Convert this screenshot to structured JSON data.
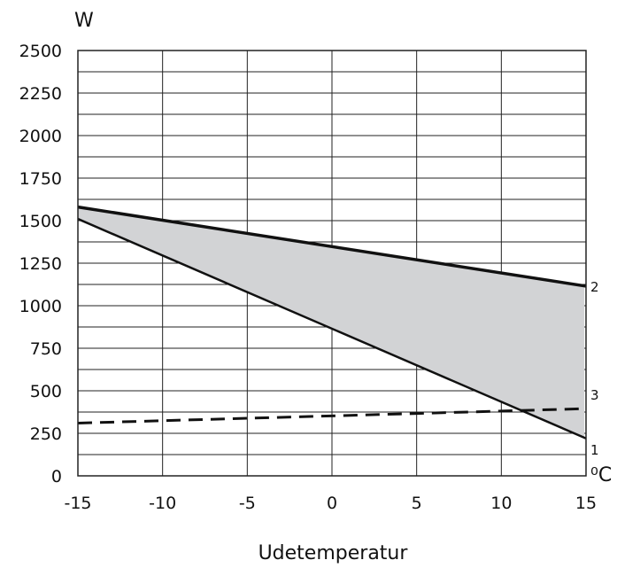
{
  "chart_data": {
    "type": "line",
    "title": "",
    "xlabel": "Udetemperatur",
    "ylabel": "W",
    "x_unit": "⁰C",
    "xlim": [
      -15,
      15
    ],
    "ylim": [
      0,
      2500
    ],
    "xticks": [
      "-15",
      "-10",
      "-5",
      "0",
      "5",
      "10",
      "15"
    ],
    "yticks": [
      "0",
      "250",
      "500",
      "750",
      "1000",
      "1250",
      "1500",
      "1750",
      "2000",
      "2250",
      "2500"
    ],
    "grid": true,
    "series": [
      {
        "name": "1",
        "style": "solid",
        "color": "#111111",
        "x": [
          -15,
          15
        ],
        "y": [
          1510,
          220
        ]
      },
      {
        "name": "2",
        "style": "solid-bold",
        "color": "#111111",
        "x": [
          -15,
          15
        ],
        "y": [
          1580,
          1115
        ]
      },
      {
        "name": "3",
        "style": "dashed",
        "color": "#111111",
        "x": [
          -15,
          15
        ],
        "y": [
          310,
          395
        ]
      }
    ],
    "shaded_region": {
      "between": [
        "1",
        "2"
      ],
      "color": "#d2d3d5",
      "clip_x_max": 14.9
    }
  }
}
